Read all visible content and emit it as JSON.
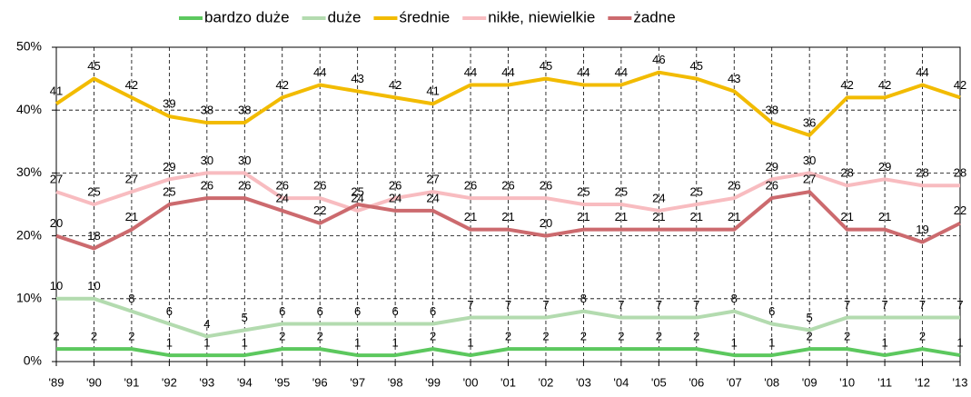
{
  "chart_data": {
    "type": "line",
    "categories": [
      "'89",
      "'90",
      "'91",
      "'92",
      "'93",
      "'94",
      "'95",
      "'96",
      "'97",
      "'98",
      "'99",
      "'00",
      "'01",
      "'02",
      "'03",
      "'04",
      "'05",
      "'06",
      "'07",
      "'08",
      "'09",
      "'10",
      "'11",
      "'12",
      "'13"
    ],
    "series": [
      {
        "name": "bardzo duże",
        "color": "#5cc85e",
        "values": [
          2,
          2,
          2,
          1,
          1,
          1,
          2,
          2,
          1,
          1,
          2,
          1,
          2,
          2,
          2,
          2,
          2,
          2,
          1,
          1,
          2,
          2,
          1,
          2,
          1
        ]
      },
      {
        "name": "duże",
        "color": "#b3dbaf",
        "values": [
          10,
          10,
          8,
          6,
          4,
          5,
          6,
          6,
          6,
          6,
          6,
          7,
          7,
          7,
          8,
          7,
          7,
          7,
          8,
          6,
          5,
          7,
          7,
          7,
          7
        ]
      },
      {
        "name": "średnie",
        "color": "#f2bb00",
        "values": [
          41,
          45,
          42,
          39,
          38,
          38,
          42,
          44,
          43,
          42,
          41,
          44,
          44,
          45,
          44,
          44,
          46,
          45,
          43,
          38,
          36,
          42,
          42,
          44,
          42
        ]
      },
      {
        "name": "nikłe, niewielkie",
        "color": "#f8bcc0",
        "values": [
          27,
          25,
          27,
          29,
          30,
          30,
          26,
          26,
          24,
          26,
          27,
          26,
          26,
          26,
          25,
          25,
          24,
          25,
          26,
          29,
          30,
          28,
          29,
          28,
          28
        ]
      },
      {
        "name": "żadne",
        "color": "#cc6a6e",
        "values": [
          20,
          18,
          21,
          25,
          26,
          26,
          24,
          22,
          25,
          24,
          24,
          21,
          21,
          20,
          21,
          21,
          21,
          21,
          21,
          26,
          27,
          21,
          21,
          19,
          22
        ]
      }
    ],
    "ylim": [
      0,
      50
    ],
    "yticks": [
      {
        "value": 0,
        "label": "0%"
      },
      {
        "value": 10,
        "label": "10%"
      },
      {
        "value": 20,
        "label": "20%"
      },
      {
        "value": 30,
        "label": "30%"
      },
      {
        "value": 40,
        "label": "40%"
      },
      {
        "value": 50,
        "label": "50%"
      }
    ],
    "grid": true,
    "legend": "top"
  }
}
